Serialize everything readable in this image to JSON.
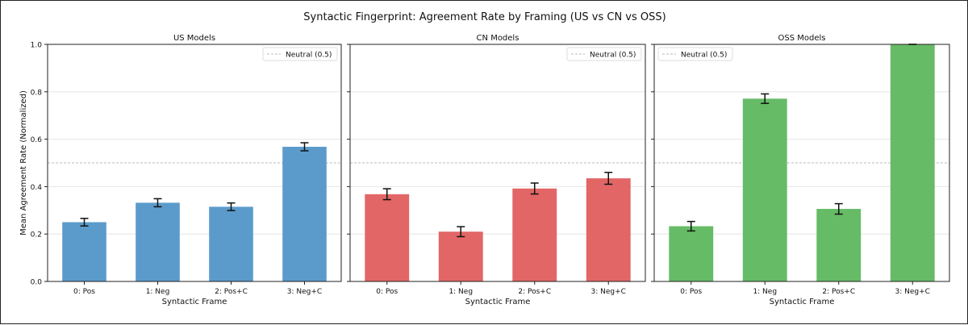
{
  "chart_data": {
    "type": "bar",
    "title": "Syntactic Fingerprint: Agreement Rate by Framing (US vs CN vs OSS)",
    "ylabel": "Mean Agreement Rate (Normalized)",
    "xlabel": "Syntactic Frame",
    "ylim": [
      0,
      1.0
    ],
    "yticks": [
      "0.0",
      "0.2",
      "0.4",
      "0.6",
      "0.8",
      "1.0"
    ],
    "categories": [
      "0: Pos",
      "1: Neg",
      "2: Pos+C",
      "3: Neg+C"
    ],
    "grid": "horizontal",
    "reference_line": {
      "value": 0.5,
      "label": "Neutral (0.5)",
      "style": "dashed",
      "color": "#bbbbbb"
    },
    "legend_placement": [
      "top-right",
      "top-right",
      "top-left"
    ],
    "panels": [
      {
        "title": "US Models",
        "color": "#5b9bcb",
        "values": [
          0.25,
          0.332,
          0.315,
          0.568
        ],
        "errors": [
          0.016,
          0.017,
          0.016,
          0.017
        ]
      },
      {
        "title": "CN Models",
        "color": "#e26666",
        "values": [
          0.368,
          0.21,
          0.392,
          0.435
        ],
        "errors": [
          0.023,
          0.021,
          0.023,
          0.025
        ]
      },
      {
        "title": "OSS Models",
        "color": "#66bb66",
        "values": [
          0.233,
          0.771,
          0.306,
          1.0
        ],
        "errors": [
          0.02,
          0.02,
          0.022,
          0.0
        ]
      }
    ]
  }
}
